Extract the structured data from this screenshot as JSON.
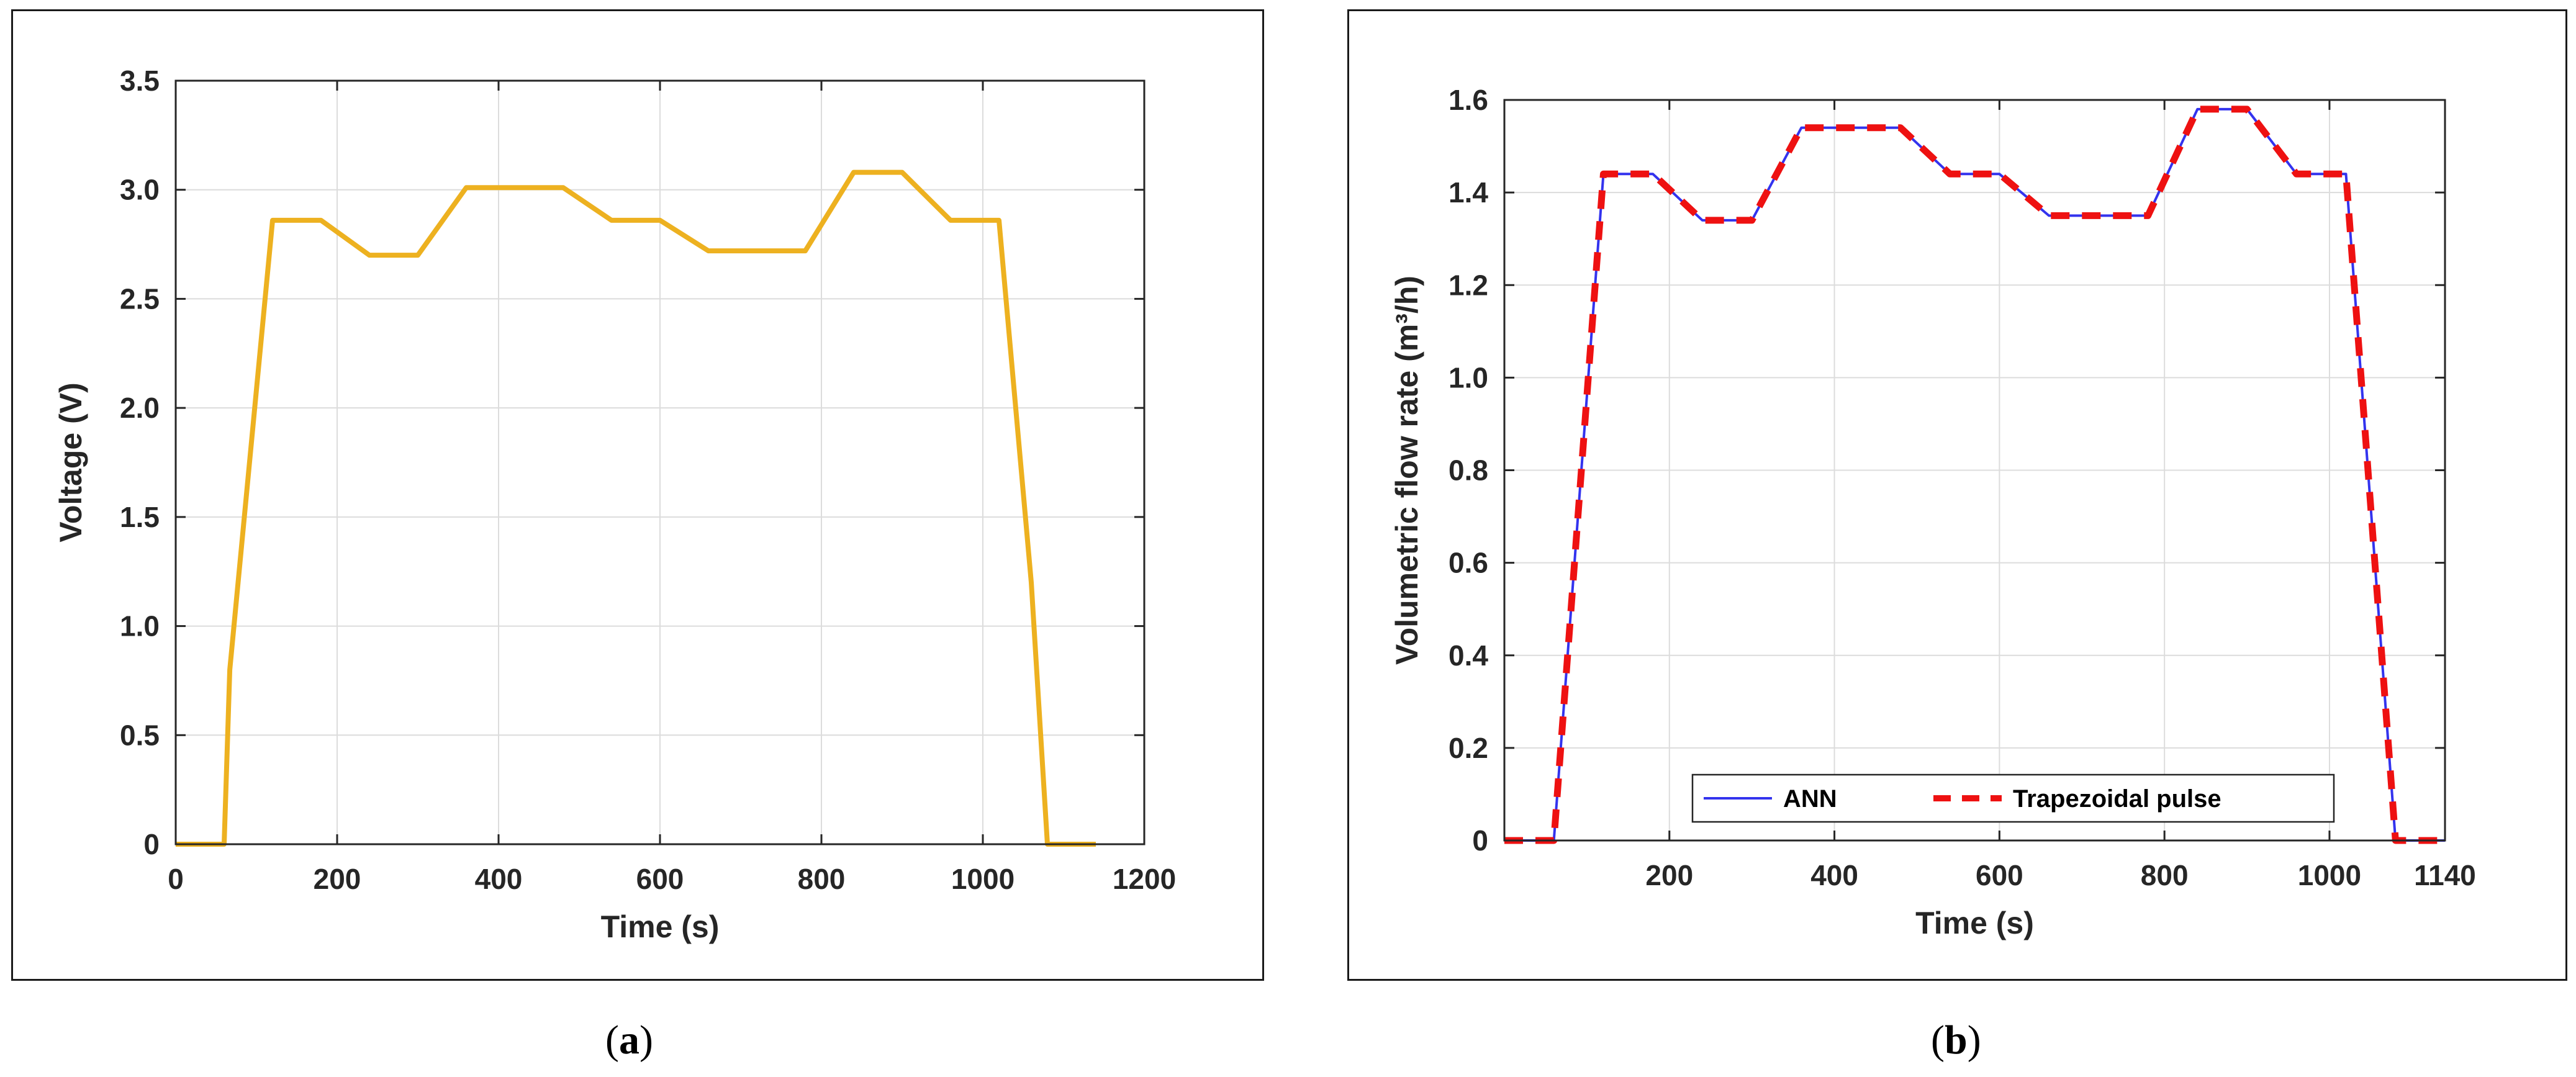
{
  "panels": [
    {
      "caption_label": "a"
    },
    {
      "caption_label": "b"
    }
  ],
  "chart_data": [
    {
      "type": "line",
      "xlabel": "Time (s)",
      "ylabel": "Voltage (V)",
      "xlim": [
        0,
        1200
      ],
      "ylim": [
        0,
        3.5
      ],
      "xticks": [
        0,
        200,
        400,
        600,
        800,
        1000,
        1200
      ],
      "xtick_labels": [
        "0",
        "200",
        "400",
        "600",
        "800",
        "1000",
        "1200"
      ],
      "yticks": [
        0,
        0.5,
        1.0,
        1.5,
        2.0,
        2.5,
        3.0,
        3.5
      ],
      "ytick_labels": [
        "0",
        "0.5",
        "1.0",
        "1.5",
        "2.0",
        "2.5",
        "3.0",
        "3.5"
      ],
      "grid": true,
      "series": [
        {
          "color": "#EDB120",
          "style": "solid",
          "x": [
            0,
            60,
            67,
            120,
            180,
            240,
            300,
            360,
            420,
            480,
            540,
            600,
            660,
            720,
            780,
            840,
            900,
            960,
            1020,
            1060,
            1080,
            1140
          ],
          "y": [
            0,
            0,
            0.8,
            2.86,
            2.86,
            2.7,
            2.7,
            3.01,
            3.01,
            3.01,
            2.86,
            2.86,
            2.72,
            2.72,
            2.72,
            3.08,
            3.08,
            2.86,
            2.86,
            1.2,
            0,
            0
          ]
        }
      ]
    },
    {
      "type": "line",
      "xlabel": "Time (s)",
      "ylabel": "Volumetric flow rate (m³/h)",
      "xlim": [
        0,
        1140
      ],
      "ylim": [
        0,
        1.6
      ],
      "xticks": [
        200,
        400,
        600,
        800,
        1000,
        1140
      ],
      "xtick_labels": [
        "200",
        "400",
        "600",
        "800",
        "1000",
        "1140"
      ],
      "yticks": [
        0,
        0.2,
        0.4,
        0.6,
        0.8,
        1.0,
        1.2,
        1.4,
        1.6
      ],
      "ytick_labels": [
        "0",
        "0.2",
        "0.4",
        "0.6",
        "0.8",
        "1.0",
        "1.2",
        "1.4",
        "1.6"
      ],
      "grid": true,
      "legend_position": "bottom",
      "series": [
        {
          "name": "ANN",
          "color": "#3333ee",
          "style": "solid",
          "x": [
            0,
            60,
            120,
            180,
            240,
            300,
            360,
            420,
            480,
            540,
            600,
            660,
            720,
            780,
            840,
            900,
            960,
            1020,
            1080,
            1140
          ],
          "y": [
            0,
            0,
            1.44,
            1.44,
            1.34,
            1.34,
            1.54,
            1.54,
            1.54,
            1.44,
            1.44,
            1.35,
            1.35,
            1.35,
            1.58,
            1.58,
            1.44,
            1.44,
            0,
            0
          ]
        },
        {
          "name": "Trapezoidal pulse",
          "color": "#ee1111",
          "style": "dashed",
          "x": [
            0,
            60,
            120,
            180,
            240,
            300,
            360,
            420,
            480,
            540,
            600,
            660,
            720,
            780,
            840,
            900,
            960,
            1020,
            1080,
            1140
          ],
          "y": [
            0,
            0,
            1.44,
            1.44,
            1.34,
            1.34,
            1.54,
            1.54,
            1.54,
            1.44,
            1.44,
            1.35,
            1.35,
            1.35,
            1.58,
            1.58,
            1.44,
            1.44,
            0,
            0
          ]
        }
      ]
    }
  ]
}
